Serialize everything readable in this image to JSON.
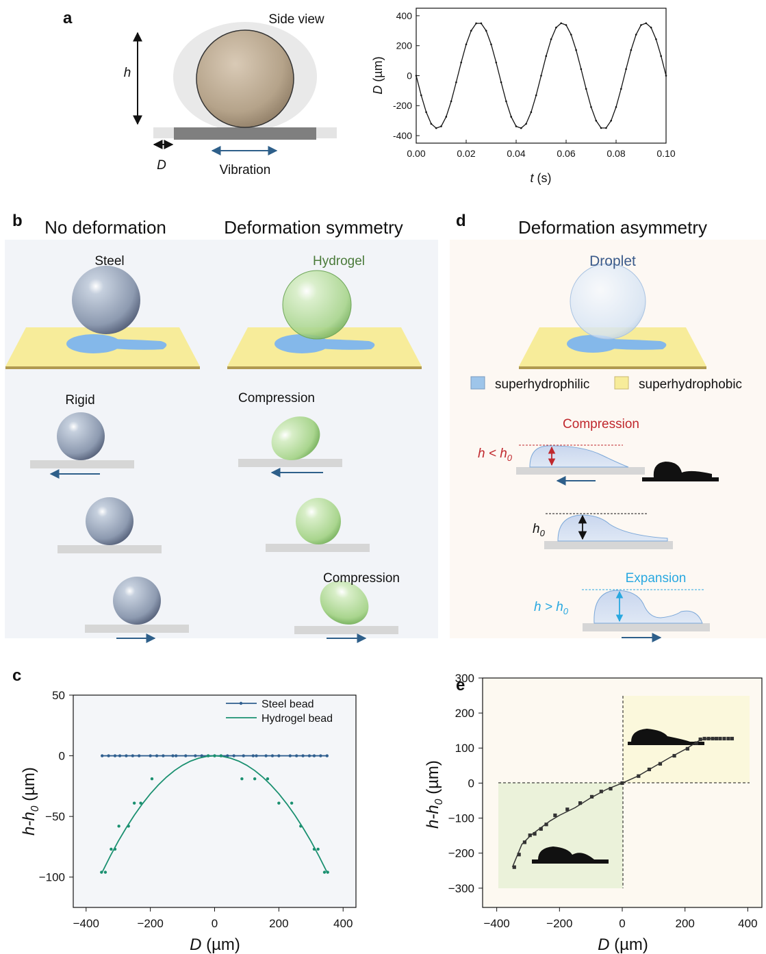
{
  "panel_labels": [
    "a",
    "b",
    "c",
    "d",
    "e"
  ],
  "panel_a": {
    "side_view": "Side view",
    "h": "h",
    "D": "D",
    "vibration": "Vibration"
  },
  "panel_b": {
    "titles": [
      "No deformation",
      "Deformation symmetry"
    ],
    "steel": "Steel",
    "hydrogel": "Hydrogel",
    "rigid": "Rigid",
    "compression_1": "Compression",
    "compression_2": "Compression"
  },
  "panel_d": {
    "title": "Deformation asymmetry",
    "droplet": "Droplet",
    "legend": [
      "superhydrophilic",
      "superhydrophobic"
    ],
    "compression": "Compression",
    "h_less": [
      "h < h",
      "0"
    ],
    "h0": [
      "h",
      "0"
    ],
    "expansion": "Expansion",
    "h_greater": [
      "h > h",
      "0"
    ]
  },
  "chart_data": [
    {
      "type": "line",
      "x_label": [
        "t",
        " (s)"
      ],
      "y_label": [
        "D",
        " (µm)"
      ],
      "color": "#111111",
      "markers": true,
      "x": [
        0,
        0.002,
        0.004,
        0.006,
        0.008,
        0.01,
        0.012,
        0.014,
        0.016,
        0.018,
        0.02,
        0.022,
        0.024,
        0.026,
        0.028,
        0.03,
        0.032,
        0.034,
        0.036,
        0.038,
        0.04,
        0.042,
        0.044,
        0.046,
        0.048,
        0.05,
        0.052,
        0.054,
        0.056,
        0.058,
        0.06,
        0.062,
        0.064,
        0.066,
        0.068,
        0.07,
        0.072,
        0.074,
        0.076,
        0.078,
        0.08,
        0.082,
        0.084,
        0.086,
        0.088,
        0.09,
        0.092,
        0.094,
        0.096,
        0.098,
        0.1
      ],
      "values": [
        0,
        -131,
        -243,
        -321,
        -350,
        -338,
        -274,
        -171,
        -44,
        88,
        209,
        300,
        349,
        349,
        300,
        209,
        88,
        -44,
        -171,
        -274,
        -338,
        -350,
        -321,
        -243,
        -131,
        0,
        131,
        243,
        321,
        350,
        338,
        274,
        171,
        44,
        -88,
        -209,
        -300,
        -349,
        -349,
        -300,
        -209,
        -88,
        44,
        171,
        274,
        338,
        350,
        321,
        243,
        131,
        0
      ],
      "xlim": [
        0,
        0.1
      ],
      "xticks": [
        {
          "value": 0,
          "label": "0.00"
        },
        0.02,
        0.04,
        0.06,
        0.08,
        {
          "value": 0.1,
          "label": "0.10"
        }
      ],
      "ylim": [
        -450,
        450
      ],
      "yticks": [
        -400,
        -200,
        0,
        200,
        400
      ]
    },
    {
      "type": "line",
      "x_label": [
        "D",
        " (µm)"
      ],
      "y_label": [
        "h-h",
        "0",
        " (µm)"
      ],
      "legend": "upper right",
      "series": [
        {
          "name": "Steel bead",
          "color": "#2f5f8f",
          "markers": true,
          "x": [
            -350,
            -330,
            -310,
            -295,
            -275,
            -255,
            -235,
            -200,
            -180,
            -160,
            -130,
            -120,
            -90,
            -60,
            -40,
            -20,
            0,
            20,
            40,
            60,
            90,
            120,
            130,
            160,
            180,
            200,
            235,
            255,
            275,
            295,
            310,
            330,
            350
          ],
          "values": [
            0,
            0,
            0,
            0,
            0,
            0,
            0,
            0,
            0,
            0,
            0,
            0,
            0,
            0,
            0,
            0,
            0,
            0,
            0,
            0,
            0,
            0,
            0,
            0,
            0,
            0,
            0,
            0,
            0,
            0,
            0,
            0,
            0
          ]
        },
        {
          "name": "Hydrogel bead",
          "color": "#1a9070",
          "x": [
            -350,
            -325,
            -300,
            -275,
            -250,
            -225,
            -200,
            -175,
            -150,
            -125,
            -100,
            -75,
            -50,
            -25,
            0,
            25,
            50,
            75,
            100,
            125,
            150,
            175,
            200,
            225,
            250,
            275,
            300,
            325,
            350
          ],
          "values": [
            -96,
            -82.8,
            -70.5,
            -59.3,
            -49,
            -39.7,
            -31.3,
            -24,
            -17.6,
            -12.2,
            -7.8,
            -4.4,
            -2,
            -0.5,
            0,
            -0.5,
            -2,
            -4.4,
            -7.8,
            -12.2,
            -17.6,
            -24,
            -31.3,
            -39.7,
            -49,
            -59.3,
            -70.5,
            -82.8,
            -96
          ],
          "points": {
            "x": [
              -352,
              -340,
              -322,
              -310,
              -298,
              -268,
              -250,
              -230,
              -195,
              -20,
              0,
              20,
              85,
              125,
              165,
              200,
              240,
              268,
              310,
              322,
              342,
              352
            ],
            "values": [
              -96,
              -96,
              -77,
              -77,
              -58,
              -58,
              -39,
              -39,
              -19,
              0,
              0,
              0,
              -19,
              -19,
              -19,
              -39,
              -39,
              -58,
              -77,
              -77,
              -96,
              -96
            ]
          }
        }
      ],
      "xlim": [
        -440,
        440
      ],
      "xticks": [
        {
          "value": -400,
          "label": "−400"
        },
        {
          "value": -200,
          "label": "−200"
        },
        0,
        200,
        400
      ],
      "ylim": [
        -125,
        50
      ],
      "yticks": [
        {
          "value": -100,
          "label": "−100"
        },
        {
          "value": -50,
          "label": "−50"
        },
        0,
        50
      ]
    },
    {
      "type": "scatter",
      "x_label": [
        "D",
        " (µm)"
      ],
      "y_label": [
        "h-h",
        "0",
        " (µm)"
      ],
      "color": "#333333",
      "x": [
        -344,
        -329,
        -311,
        -294,
        -279,
        -259,
        -242,
        -214,
        -175,
        -134,
        -97,
        -67,
        -37,
        0,
        52,
        86,
        121,
        166,
        208,
        236,
        249,
        262,
        275,
        288,
        300,
        312,
        325,
        338,
        350
      ],
      "values": [
        -240,
        -204,
        -169,
        -149,
        -145,
        -131,
        -118,
        -92,
        -75,
        -57,
        -39,
        -24,
        -16,
        0,
        20,
        39,
        55,
        78,
        98,
        114,
        125,
        127,
        127,
        127,
        127,
        127,
        127,
        127,
        127
      ],
      "fit_x": [
        -350,
        -320,
        -290,
        -260,
        -230,
        -200,
        -150,
        -100,
        -50,
        0,
        50,
        100,
        150,
        200,
        250,
        275,
        300
      ],
      "fit_values": [
        -240,
        -175,
        -148,
        -128,
        -108,
        -92,
        -70,
        -42,
        -18,
        0,
        20,
        46,
        72,
        96,
        124,
        127,
        127
      ],
      "xlim": [
        -445,
        445
      ],
      "xticks": [
        {
          "value": -400,
          "label": "−400"
        },
        {
          "value": -200,
          "label": "−200"
        },
        0,
        200,
        400
      ],
      "ylim": [
        -355,
        300
      ],
      "yticks": [
        {
          "value": -300,
          "label": "−300"
        },
        {
          "value": -200,
          "label": "−200"
        },
        {
          "value": -100,
          "label": "−100"
        },
        0,
        100,
        200,
        300
      ]
    }
  ]
}
